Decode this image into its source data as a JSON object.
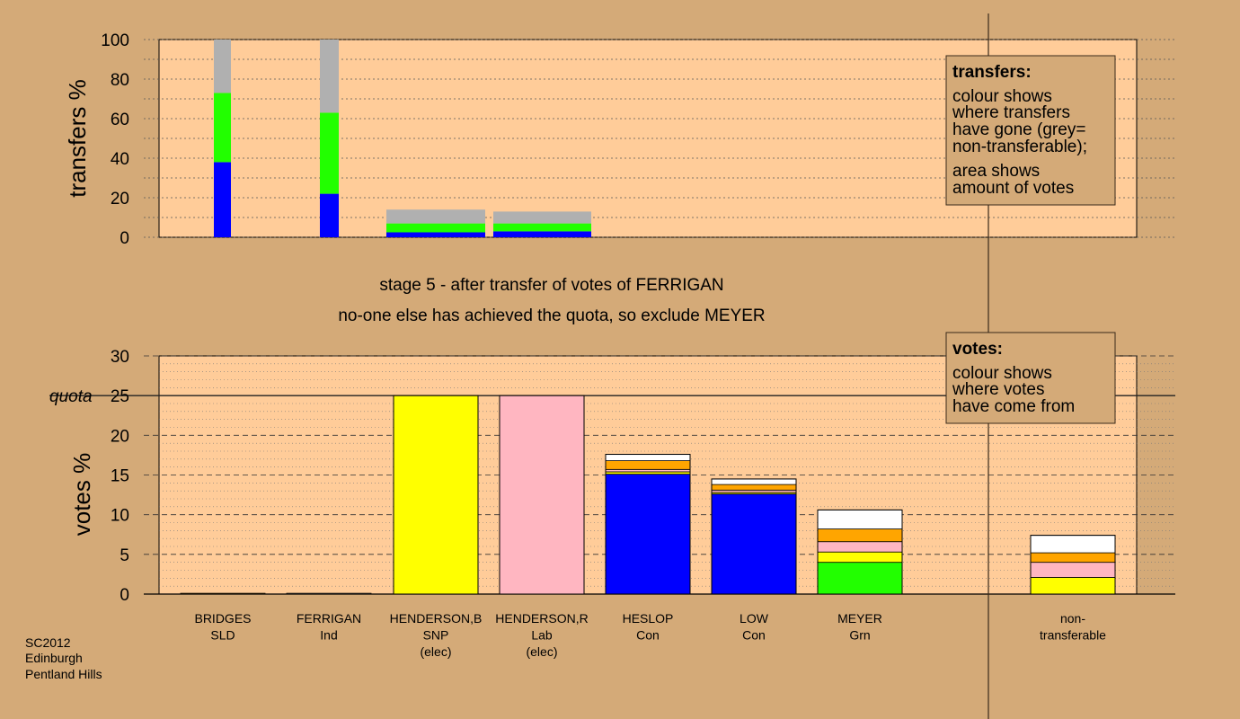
{
  "captions": {
    "stage": "stage 5 - after transfer of votes of FERRIGAN",
    "action": "no-one else has achieved the quota, so exclude MEYER"
  },
  "footer": [
    "SC2012",
    "Edinburgh",
    "Pentland Hills"
  ],
  "quota_label": "quota",
  "legend_transfers": {
    "title": "transfers:",
    "lines": [
      "colour shows",
      "where transfers",
      "have gone (grey=",
      "non-transferable);",
      "area shows",
      "amount of votes"
    ]
  },
  "legend_votes": {
    "title": "votes:",
    "lines": [
      "colour shows",
      "where votes",
      "have come from"
    ]
  },
  "colors": {
    "bg": "#d4aa78",
    "plot": "#ffcc99",
    "SLD": "#ffa500",
    "Ind": "#ffffff",
    "SNP": "#ffff00",
    "Lab": "#ffb6c1",
    "Con": "#0000ff",
    "Grn": "#22ff00",
    "nontransferable": "#b0b0b0"
  },
  "chart_data": [
    {
      "type": "bar",
      "stacked": true,
      "ylabel": "transfers %",
      "ylim": [
        0,
        100
      ],
      "yticks": [
        0,
        20,
        40,
        60,
        80,
        100
      ],
      "grid": true,
      "bars": [
        {
          "column": "BRIDGES",
          "segments": [
            {
              "to": "Con",
              "value": 38
            },
            {
              "to": "Grn",
              "value": 35
            },
            {
              "to": "nontransferable",
              "value": 27
            }
          ]
        },
        {
          "column": "FERRIGAN",
          "segments": [
            {
              "to": "Con",
              "value": 22
            },
            {
              "to": "Grn",
              "value": 41
            },
            {
              "to": "nontransferable",
              "value": 37
            }
          ]
        },
        {
          "column": "HENDERSON,B",
          "segments": [
            {
              "to": "Con",
              "value": 2.5
            },
            {
              "to": "Grn",
              "value": 4.5
            },
            {
              "to": "nontransferable",
              "value": 7
            }
          ]
        },
        {
          "column": "HENDERSON,R",
          "segments": [
            {
              "to": "Con",
              "value": 3
            },
            {
              "to": "Grn",
              "value": 4
            },
            {
              "to": "nontransferable",
              "value": 6
            }
          ]
        }
      ]
    },
    {
      "type": "bar",
      "stacked": true,
      "ylabel": "votes %",
      "ylim": [
        0,
        30
      ],
      "yticks": [
        0,
        5,
        10,
        15,
        20,
        25,
        30
      ],
      "quota": 25,
      "grid": true,
      "candidates": [
        {
          "name": "BRIDGES",
          "party": "SLD",
          "status": "",
          "segments": [
            {
              "from": "SLD",
              "value": 0.1
            }
          ]
        },
        {
          "name": "FERRIGAN",
          "party": "Ind",
          "status": "",
          "segments": [
            {
              "from": "Ind",
              "value": 0.1
            }
          ]
        },
        {
          "name": "HENDERSON,B",
          "party": "SNP",
          "status": "(elec)",
          "segments": [
            {
              "from": "SNP",
              "value": 25
            }
          ]
        },
        {
          "name": "HENDERSON,R",
          "party": "Lab",
          "status": "(elec)",
          "segments": [
            {
              "from": "Lab",
              "value": 25
            }
          ]
        },
        {
          "name": "HESLOP",
          "party": "Con",
          "status": "",
          "segments": [
            {
              "from": "Con",
              "value": 15.1
            },
            {
              "from": "SNP",
              "value": 0.3
            },
            {
              "from": "Lab",
              "value": 0.3
            },
            {
              "from": "SLD",
              "value": 1.1
            },
            {
              "from": "Ind",
              "value": 0.8
            }
          ]
        },
        {
          "name": "LOW",
          "party": "Con",
          "status": "",
          "segments": [
            {
              "from": "Con",
              "value": 12.6
            },
            {
              "from": "SNP",
              "value": 0.2
            },
            {
              "from": "Lab",
              "value": 0.3
            },
            {
              "from": "SLD",
              "value": 0.7
            },
            {
              "from": "Ind",
              "value": 0.7
            }
          ]
        },
        {
          "name": "MEYER",
          "party": "Grn",
          "status": "",
          "segments": [
            {
              "from": "Grn",
              "value": 4.0
            },
            {
              "from": "SNP",
              "value": 1.3
            },
            {
              "from": "Lab",
              "value": 1.3
            },
            {
              "from": "SLD",
              "value": 1.6
            },
            {
              "from": "Ind",
              "value": 2.4
            }
          ]
        },
        {
          "name": "non-",
          "party": "transferable",
          "status": "",
          "segments": [
            {
              "from": "SNP",
              "value": 2.1
            },
            {
              "from": "Lab",
              "value": 1.9
            },
            {
              "from": "SLD",
              "value": 1.2
            },
            {
              "from": "Ind",
              "value": 2.2
            }
          ]
        }
      ]
    }
  ]
}
